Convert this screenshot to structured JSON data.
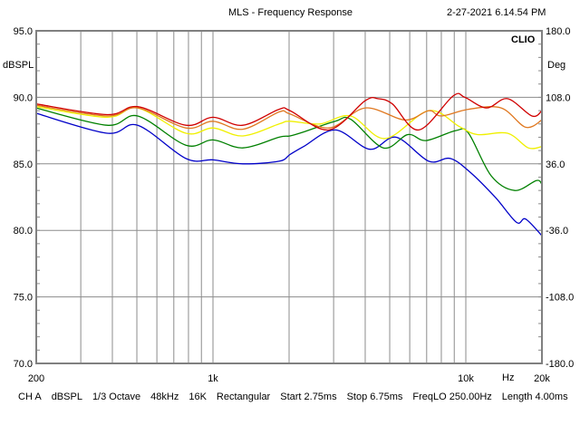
{
  "header": {
    "title": "MLS - Frequency Response",
    "timestamp": "2-27-2021 6.14.54 PM",
    "brand": "CLIO"
  },
  "footer": {
    "items": [
      "CH A",
      "dBSPL",
      "1/3 Octave",
      "48kHz",
      "16K",
      "Rectangular",
      "Start 2.75ms",
      "Stop 6.75ms",
      "FreqLO 250.00Hz",
      "Length 4.00ms"
    ]
  },
  "chart_data": {
    "type": "line",
    "title": "MLS - Frequency Response",
    "xlabel": "Hz",
    "ylabel": "dBSPL",
    "y2label": "Deg",
    "xscale": "log",
    "xlim": [
      200,
      20000
    ],
    "ylim": [
      70,
      95
    ],
    "y2lim": [
      -180,
      180
    ],
    "x_tick_labels": [
      "200",
      "1k",
      "10k",
      "20k"
    ],
    "x_tick_values": [
      200,
      1000,
      10000,
      20000
    ],
    "y_ticks": [
      95,
      90,
      85,
      80,
      75,
      70
    ],
    "y_tick_labels": [
      "95.0",
      "90.0",
      "85.0",
      "80.0",
      "75.0",
      "70.0"
    ],
    "y2_tick_labels": [
      "180.0",
      "108.0",
      "36.0",
      "-36.0",
      "-108.0",
      "-180.0"
    ],
    "grid": true,
    "series": [
      {
        "name": "blue",
        "color": "#0000c8",
        "points": [
          [
            200,
            88.8
          ],
          [
            381,
            87.3
          ],
          [
            504,
            87.9
          ],
          [
            781,
            85.4
          ],
          [
            1000,
            85.3
          ],
          [
            1313,
            85.0
          ],
          [
            1826,
            85.2
          ],
          [
            2017,
            85.7
          ],
          [
            2282,
            86.3
          ],
          [
            3047,
            87.55
          ],
          [
            4168,
            86.1
          ],
          [
            5297,
            87.0
          ],
          [
            7129,
            85.2
          ],
          [
            8688,
            85.4
          ],
          [
            10506,
            84.3
          ],
          [
            13124,
            82.45
          ],
          [
            15879,
            80.6
          ],
          [
            17232,
            80.85
          ],
          [
            20000,
            79.6
          ]
        ]
      },
      {
        "name": "green",
        "color": "#008000",
        "points": [
          [
            200,
            89.2
          ],
          [
            381,
            87.9
          ],
          [
            504,
            88.6
          ],
          [
            781,
            86.4
          ],
          [
            1000,
            86.8
          ],
          [
            1313,
            86.2
          ],
          [
            1826,
            87.0
          ],
          [
            2017,
            87.1
          ],
          [
            2282,
            87.4
          ],
          [
            3047,
            88.2
          ],
          [
            3504,
            88.35
          ],
          [
            4718,
            86.2
          ],
          [
            5896,
            87.2
          ],
          [
            6953,
            86.75
          ],
          [
            9126,
            87.5
          ],
          [
            10253,
            87.3
          ],
          [
            12597,
            84.1
          ],
          [
            15609,
            83.0
          ],
          [
            19013,
            83.75
          ],
          [
            20000,
            83.45
          ]
        ]
      },
      {
        "name": "yellow",
        "color": "#f0f000",
        "points": [
          [
            200,
            89.3
          ],
          [
            381,
            88.5
          ],
          [
            504,
            89.2
          ],
          [
            781,
            87.3
          ],
          [
            1000,
            87.7
          ],
          [
            1313,
            87.1
          ],
          [
            1826,
            88.0
          ],
          [
            2017,
            88.2
          ],
          [
            2648,
            88.0
          ],
          [
            3504,
            88.6
          ],
          [
            4797,
            86.9
          ],
          [
            7129,
            89.0
          ],
          [
            9433,
            87.8
          ],
          [
            11124,
            87.2
          ],
          [
            14613,
            87.3
          ],
          [
            17658,
            86.2
          ],
          [
            20000,
            86.3
          ]
        ]
      },
      {
        "name": "orange",
        "color": "#e07820",
        "points": [
          [
            200,
            89.4
          ],
          [
            381,
            88.6
          ],
          [
            504,
            89.2
          ],
          [
            781,
            87.7
          ],
          [
            1000,
            88.2
          ],
          [
            1313,
            87.6
          ],
          [
            1826,
            88.9
          ],
          [
            2017,
            88.75
          ],
          [
            2875,
            87.7
          ],
          [
            4000,
            89.2
          ],
          [
            5750,
            88.3
          ],
          [
            7129,
            89.0
          ],
          [
            8000,
            88.6
          ],
          [
            10253,
            89.1
          ],
          [
            13794,
            89.2
          ],
          [
            17232,
            87.75
          ],
          [
            20000,
            88.3
          ]
        ]
      },
      {
        "name": "red",
        "color": "#d00000",
        "points": [
          [
            200,
            89.5
          ],
          [
            381,
            88.7
          ],
          [
            504,
            89.3
          ],
          [
            781,
            87.9
          ],
          [
            1000,
            88.5
          ],
          [
            1313,
            87.9
          ],
          [
            1826,
            89.1
          ],
          [
            2017,
            89.0
          ],
          [
            2875,
            87.55
          ],
          [
            4000,
            89.75
          ],
          [
            4490,
            89.9
          ],
          [
            5125,
            89.5
          ],
          [
            6510,
            87.55
          ],
          [
            8908,
            90.1
          ],
          [
            9911,
            90.0
          ],
          [
            12076,
            89.2
          ],
          [
            14613,
            89.9
          ],
          [
            18260,
            88.6
          ],
          [
            20000,
            89.0
          ]
        ]
      }
    ]
  }
}
